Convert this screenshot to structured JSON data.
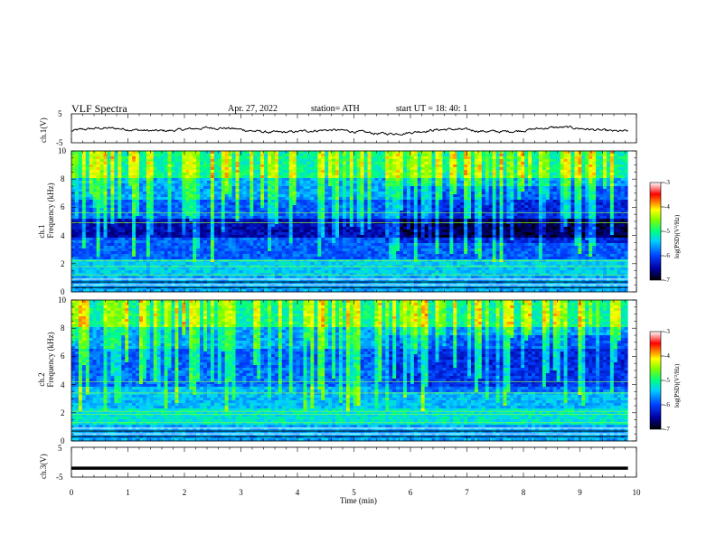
{
  "header": {
    "title": "VLF  Spectra",
    "date": "Apr. 27, 2022",
    "station": "station= ATH",
    "start": "start  UT  =    18: 40: 1"
  },
  "colors": {
    "spec_low": "#000020",
    "spec_mid_blue": "#0030ff",
    "spec_cyan": "#00e0e0",
    "spec_green": "#40ff40",
    "spec_yellow": "#ffff00",
    "spec_red": "#ff0000",
    "spec_white": "#ffffff",
    "trace": "#000000"
  },
  "chart_data": [
    {
      "type": "line",
      "ylabel": "ch.1(V)",
      "ylim": [
        -5,
        5
      ],
      "yticks": [
        "5",
        "-5"
      ],
      "xlim": [
        0,
        10
      ],
      "description_series": "ch.1 voltage trace"
    },
    {
      "type": "heatmap",
      "ylabel_line1": "ch.1",
      "ylabel_line2": "Frequency  (kHz)",
      "ylim": [
        0,
        10
      ],
      "yticks": [
        "0",
        "2",
        "4",
        "6",
        "8",
        "10"
      ],
      "xlim": [
        0,
        10
      ],
      "colorbar": {
        "label": "log(PSD)(V²/Hz)",
        "ticks": [
          "-3",
          "-4",
          "-5",
          "-6",
          "-7"
        ],
        "range": [
          -7,
          -3
        ]
      }
    },
    {
      "type": "heatmap",
      "ylabel_line1": "ch.2",
      "ylabel_line2": "Frequency  (kHz)",
      "ylim": [
        0,
        10
      ],
      "yticks": [
        "0",
        "2",
        "4",
        "6",
        "8",
        "10"
      ],
      "xlim": [
        0,
        10
      ],
      "colorbar": {
        "label": "log(PSD)(V²/Hz)",
        "ticks": [
          "-3",
          "-4",
          "-5",
          "-6",
          "-7"
        ],
        "range": [
          -7,
          -3
        ]
      }
    },
    {
      "type": "line",
      "ylabel": "ch.3(V)",
      "ylim": [
        -5,
        5
      ],
      "yticks": [
        "5",
        "-5"
      ],
      "xlim": [
        0,
        10
      ],
      "flat_value": -2
    }
  ],
  "xaxis": {
    "label": "Time  (min)",
    "ticks": [
      "0",
      "1",
      "2",
      "3",
      "4",
      "5",
      "6",
      "7",
      "8",
      "9",
      "10"
    ],
    "data_end": 9.85
  }
}
